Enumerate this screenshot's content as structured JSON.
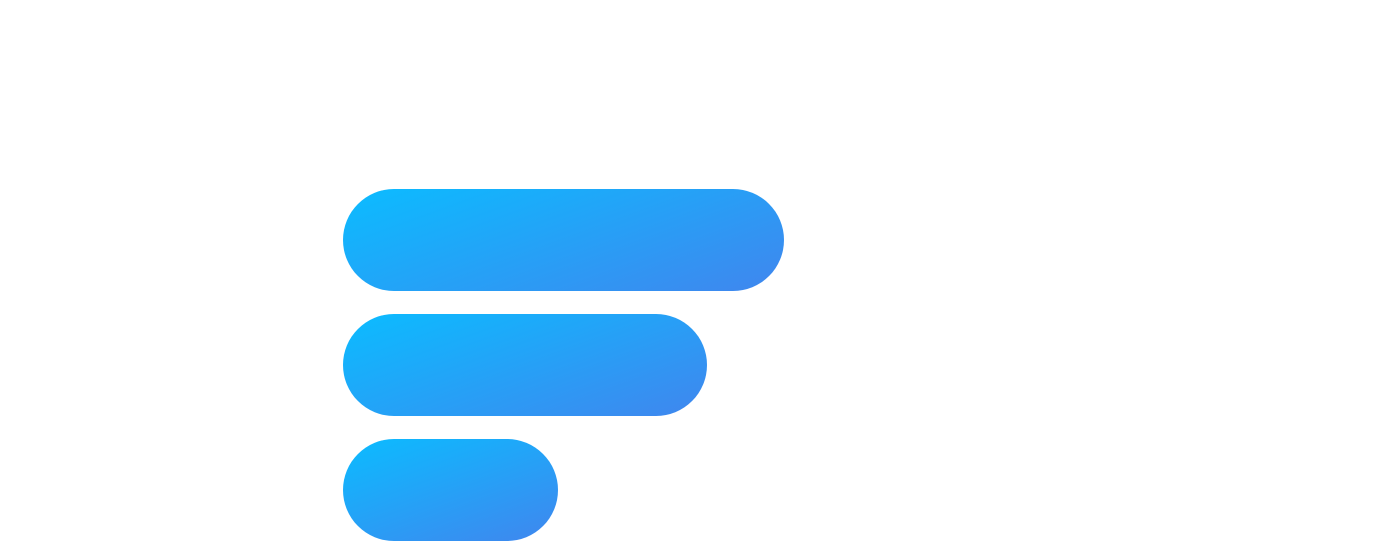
{
  "logo": {
    "icon": "stacked-bars-logo-icon",
    "gradient_start": "#0bbcff",
    "gradient_end": "#4086ee",
    "bars": 3
  }
}
